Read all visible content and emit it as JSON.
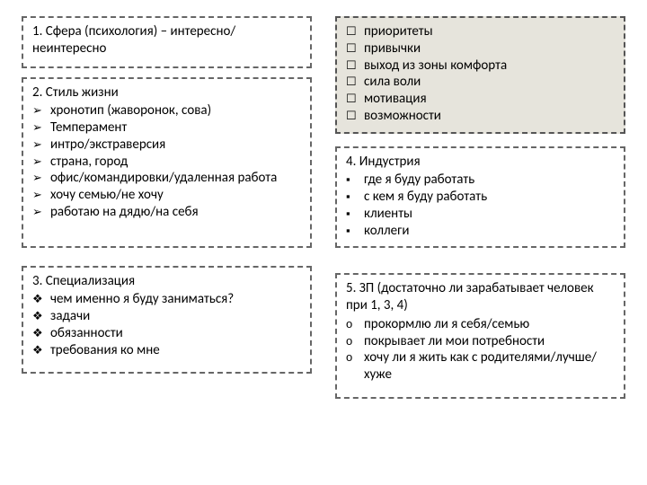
{
  "colors": {
    "border": "#666666",
    "shaded_bg": "#e6e4dc",
    "text": "#000000",
    "bg": "#ffffff"
  },
  "typography": {
    "font_family": "Calibri, Arial, sans-serif",
    "base_size_pt": 11
  },
  "layout": {
    "type": "infographic",
    "columns": 2,
    "box_border_style": "dashed"
  },
  "bullets": {
    "arrow": "➢",
    "diamond": "❖",
    "hollow_square": "☐",
    "filled_square": "▪",
    "hollow_circle": "o"
  },
  "boxes": {
    "b1": {
      "title": "1. Сфера (психология) – интересно/неинтересно",
      "bullet": null,
      "items": []
    },
    "b2": {
      "title": "2. Стиль жизни",
      "bullet": "arrow",
      "items": [
        "хронотип (жаворонок, сова)",
        "Темперамент",
        "интро/экстраверсия",
        "страна, город",
        "офис/командировки/удаленная работа",
        "хочу семью/не хочу",
        "работаю на дядю/на себя"
      ]
    },
    "b3": {
      "title": "3. Специализация",
      "bullet": "diamond",
      "items": [
        "чем именно я буду заниматься?",
        "задачи",
        "обязанности",
        "требования ко мне"
      ]
    },
    "bR": {
      "title": null,
      "bullet": "hollow_square",
      "shaded": true,
      "items": [
        "приоритеты",
        "привычки",
        "выход из зоны комфорта",
        "сила воли",
        "мотивация",
        "возможности"
      ]
    },
    "b4": {
      "title": "4. Индустрия",
      "bullet": "filled_square",
      "items": [
        "где я буду работать",
        "с кем я буду работать",
        "клиенты",
        "коллеги"
      ]
    },
    "b5": {
      "title": "5. ЗП (достаточно ли зарабатывает человек при 1, 3, 4)",
      "bullet": "hollow_circle",
      "items": [
        "прокормлю ли я себя/семью",
        "покрывает ли мои потребности",
        "хочу ли я жить как с родителями/лучше/хуже"
      ]
    }
  }
}
